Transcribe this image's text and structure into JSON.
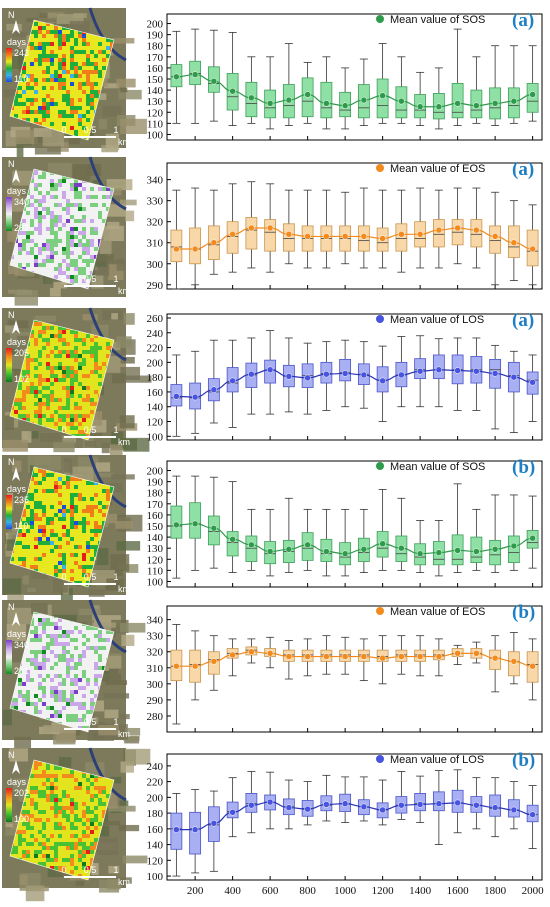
{
  "maps": [
    {
      "legend_title": "days",
      "legend_max": "243",
      "legend_min": "110",
      "scale_labels": [
        "0",
        "0.5",
        "1"
      ],
      "scale_unit": "km",
      "north": "N",
      "ramp": [
        "#1a4fd6",
        "#3bb0ea",
        "#1fae3c",
        "#e8e820",
        "#f07d1a",
        "#e51e1e"
      ]
    },
    {
      "legend_title": "days",
      "legend_max": "340",
      "legend_min": "282",
      "scale_labels": [
        "0",
        "0.5",
        "1"
      ],
      "scale_unit": "km",
      "north": "N",
      "ramp": [
        "#138a24",
        "#7bcf7e",
        "#f2f2f2",
        "#c9a7e8",
        "#7b3fc7"
      ]
    },
    {
      "legend_title": "days",
      "legend_max": "205",
      "legend_min": "102",
      "scale_labels": [
        "0",
        "0.5",
        "1"
      ],
      "scale_unit": "km",
      "north": "N",
      "ramp": [
        "#0f7a20",
        "#48c232",
        "#e2e41e",
        "#f38a1c",
        "#e31c1c"
      ]
    },
    {
      "legend_title": "days",
      "legend_max": "235",
      "legend_min": "110",
      "scale_labels": [
        "0",
        "0.5",
        "1"
      ],
      "scale_unit": "km",
      "north": "N",
      "ramp": [
        "#1a4fd6",
        "#3bb0ea",
        "#1fae3c",
        "#e8e820",
        "#f07d1a",
        "#e51e1e"
      ]
    },
    {
      "legend_title": "days",
      "legend_max": "340",
      "legend_min": "281",
      "scale_labels": [
        "0",
        "0.5",
        "1"
      ],
      "scale_unit": "km",
      "north": "N",
      "ramp": [
        "#138a24",
        "#7bcf7e",
        "#f2f2f2",
        "#c9a7e8",
        "#7b3fc7"
      ]
    },
    {
      "legend_title": "days",
      "legend_max": "202",
      "legend_min": "100",
      "scale_labels": [
        "0",
        "0.5",
        "1"
      ],
      "scale_unit": "km",
      "north": "N",
      "ramp": [
        "#0f7a20",
        "#48c232",
        "#e2e41e",
        "#f38a1c",
        "#e31c1c"
      ]
    }
  ],
  "chart_data": [
    {
      "type": "box",
      "panel_label": "(a)",
      "legend": "Mean value of SOS",
      "legend_position": "top-right",
      "colors": {
        "fill": "#8fe0a4",
        "stroke": "#3f9e5a",
        "mean": "#2f9a4c",
        "line": "#2f9a4c"
      },
      "x": [
        100,
        200,
        300,
        400,
        500,
        600,
        700,
        800,
        900,
        1000,
        1100,
        1200,
        1300,
        1400,
        1500,
        1600,
        1700,
        1800,
        1900,
        2000
      ],
      "x_ticks": [
        "200",
        "400",
        "600",
        "800",
        "1000",
        "1200",
        "1400",
        "1600",
        "1800",
        "2000"
      ],
      "ylim": [
        95,
        205
      ],
      "y_ticks": [
        "100",
        "110",
        "120",
        "130",
        "140",
        "150",
        "160",
        "170",
        "180",
        "190",
        "200"
      ],
      "whisker_low": [
        110,
        110,
        112,
        108,
        110,
        105,
        108,
        110,
        105,
        105,
        108,
        110,
        110,
        108,
        105,
        108,
        110,
        108,
        110,
        112
      ],
      "q1": [
        143,
        145,
        138,
        122,
        116,
        115,
        115,
        116,
        115,
        116,
        115,
        115,
        115,
        115,
        114,
        115,
        115,
        114,
        115,
        120
      ],
      "median": [
        152,
        155,
        146,
        134,
        128,
        124,
        126,
        130,
        124,
        122,
        124,
        126,
        122,
        122,
        120,
        120,
        122,
        124,
        126,
        130
      ],
      "q3": [
        163,
        166,
        161,
        155,
        147,
        140,
        145,
        151,
        147,
        138,
        145,
        150,
        143,
        136,
        137,
        146,
        140,
        142,
        142,
        146
      ],
      "whisker_high": [
        193,
        195,
        194,
        192,
        170,
        170,
        182,
        165,
        170,
        160,
        168,
        182,
        170,
        156,
        160,
        195,
        170,
        180,
        180,
        180
      ],
      "mean": [
        152,
        154,
        148,
        139,
        133,
        128,
        131,
        136,
        128,
        126,
        131,
        135,
        130,
        125,
        125,
        128,
        126,
        128,
        130,
        136
      ]
    },
    {
      "type": "box",
      "panel_label": "(a)",
      "legend": "Mean value of EOS",
      "legend_position": "top-right",
      "colors": {
        "fill": "#f8d7a9",
        "stroke": "#c9964f",
        "mean": "#f28a1e",
        "line": "#f28a1e"
      },
      "x": [
        100,
        200,
        300,
        400,
        500,
        600,
        700,
        800,
        900,
        1000,
        1100,
        1200,
        1300,
        1400,
        1500,
        1600,
        1700,
        1800,
        1900,
        2000
      ],
      "x_ticks": [
        "200",
        "400",
        "600",
        "800",
        "1000",
        "1200",
        "1400",
        "1600",
        "1800",
        "2000"
      ],
      "ylim": [
        288,
        346
      ],
      "y_ticks": [
        "290",
        "300",
        "310",
        "320",
        "330",
        "340"
      ],
      "whisker_low": [
        288,
        290,
        295,
        296,
        298,
        296,
        300,
        298,
        298,
        300,
        298,
        298,
        296,
        298,
        298,
        300,
        298,
        290,
        292,
        290
      ],
      "q1": [
        301,
        300,
        302,
        305,
        307,
        306,
        306,
        306,
        306,
        306,
        306,
        306,
        306,
        308,
        308,
        309,
        308,
        305,
        303,
        299
      ],
      "median": [
        308,
        307,
        309,
        313,
        316,
        315,
        312,
        312,
        312,
        312,
        311,
        310,
        312,
        312,
        314,
        315,
        314,
        311,
        308,
        306
      ],
      "q3": [
        316,
        317,
        318,
        320,
        322,
        321,
        319,
        318,
        318,
        318,
        318,
        317,
        319,
        320,
        321,
        321,
        321,
        318,
        318,
        316
      ],
      "whisker_high": [
        335,
        336,
        335,
        338,
        339,
        338,
        335,
        335,
        335,
        334,
        336,
        335,
        335,
        336,
        335,
        336,
        336,
        334,
        330,
        328
      ],
      "mean": [
        307,
        307,
        310,
        314,
        317,
        317,
        314,
        313,
        313,
        313,
        313,
        312,
        314,
        314,
        316,
        317,
        316,
        313,
        310,
        307
      ]
    },
    {
      "type": "box",
      "panel_label": "(a)",
      "legend": "Mean value of LOS",
      "legend_position": "top-right",
      "colors": {
        "fill": "#a8aff3",
        "stroke": "#4b55c8",
        "mean": "#4754e0",
        "line": "#2b34b8"
      },
      "x": [
        100,
        200,
        300,
        400,
        500,
        600,
        700,
        800,
        900,
        1000,
        1100,
        1200,
        1300,
        1400,
        1500,
        1600,
        1700,
        1800,
        1900,
        2000
      ],
      "x_ticks": [
        "200",
        "400",
        "600",
        "800",
        "1000",
        "1200",
        "1400",
        "1600",
        "1800",
        "2000"
      ],
      "ylim": [
        95,
        260
      ],
      "y_ticks": [
        "100",
        "120",
        "140",
        "160",
        "180",
        "200",
        "220",
        "240",
        "260"
      ],
      "whisker_low": [
        100,
        104,
        118,
        112,
        130,
        130,
        133,
        130,
        135,
        140,
        138,
        120,
        140,
        140,
        140,
        135,
        135,
        110,
        105,
        120
      ],
      "q1": [
        141,
        137,
        148,
        160,
        166,
        172,
        167,
        166,
        172,
        175,
        170,
        160,
        167,
        178,
        178,
        171,
        172,
        165,
        160,
        157
      ],
      "median": [
        152,
        152,
        160,
        172,
        183,
        190,
        181,
        182,
        185,
        186,
        184,
        176,
        183,
        190,
        190,
        190,
        190,
        190,
        182,
        176
      ],
      "q3": [
        170,
        172,
        178,
        193,
        199,
        203,
        196,
        198,
        200,
        204,
        198,
        194,
        200,
        205,
        210,
        210,
        208,
        204,
        200,
        187
      ],
      "whisker_high": [
        210,
        215,
        230,
        230,
        233,
        243,
        233,
        226,
        228,
        230,
        228,
        222,
        235,
        236,
        232,
        233,
        233,
        223,
        215,
        210
      ],
      "mean": [
        154,
        153,
        163,
        175,
        184,
        190,
        181,
        179,
        184,
        185,
        183,
        175,
        183,
        188,
        190,
        189,
        188,
        185,
        180,
        173
      ]
    },
    {
      "type": "box",
      "panel_label": "(b)",
      "legend": "Mean value of SOS",
      "legend_position": "top-right",
      "colors": {
        "fill": "#8fe0a4",
        "stroke": "#3f9e5a",
        "mean": "#2f9a4c",
        "line": "#2f9a4c"
      },
      "x": [
        100,
        200,
        300,
        400,
        500,
        600,
        700,
        800,
        900,
        1000,
        1100,
        1200,
        1300,
        1400,
        1500,
        1600,
        1700,
        1800,
        1900,
        2000
      ],
      "x_ticks": [
        "200",
        "400",
        "600",
        "800",
        "1000",
        "1200",
        "1400",
        "1600",
        "1800",
        "2000"
      ],
      "ylim": [
        95,
        205
      ],
      "y_ticks": [
        "100",
        "110",
        "120",
        "130",
        "140",
        "150",
        "160",
        "170",
        "180",
        "190",
        "200"
      ],
      "whisker_low": [
        103,
        110,
        112,
        108,
        110,
        105,
        108,
        110,
        105,
        105,
        108,
        110,
        110,
        108,
        105,
        108,
        110,
        108,
        110,
        112
      ],
      "q1": [
        139,
        139,
        133,
        123,
        118,
        116,
        117,
        119,
        118,
        115,
        118,
        122,
        118,
        115,
        115,
        115,
        117,
        115,
        117,
        130
      ],
      "median": [
        150,
        152,
        145,
        135,
        130,
        125,
        127,
        130,
        125,
        122,
        126,
        130,
        125,
        122,
        120,
        120,
        122,
        124,
        126,
        135
      ],
      "q3": [
        168,
        171,
        159,
        145,
        141,
        136,
        137,
        144,
        138,
        135,
        139,
        145,
        141,
        134,
        136,
        142,
        140,
        137,
        141,
        146
      ],
      "whisker_high": [
        195,
        195,
        194,
        190,
        165,
        165,
        175,
        165,
        165,
        165,
        165,
        183,
        175,
        155,
        155,
        188,
        165,
        178,
        178,
        177
      ],
      "mean": [
        151,
        152,
        148,
        138,
        133,
        127,
        129,
        133,
        127,
        125,
        129,
        134,
        130,
        125,
        126,
        128,
        127,
        129,
        132,
        139
      ]
    },
    {
      "type": "box",
      "panel_label": "(b)",
      "legend": "Mean value of EOS",
      "legend_position": "top-right",
      "colors": {
        "fill": "#f8d7a9",
        "stroke": "#c9964f",
        "mean": "#f28a1e",
        "line": "#f28a1e"
      },
      "x": [
        100,
        200,
        300,
        400,
        500,
        600,
        700,
        800,
        900,
        1000,
        1100,
        1200,
        1300,
        1400,
        1500,
        1600,
        1700,
        1800,
        1900,
        2000
      ],
      "x_ticks": [
        "200",
        "400",
        "600",
        "800",
        "1000",
        "1200",
        "1400",
        "1600",
        "1800",
        "2000"
      ],
      "ylim": [
        270,
        346
      ],
      "y_ticks": [
        "280",
        "290",
        "300",
        "310",
        "320",
        "330",
        "340"
      ],
      "whisker_low": [
        275,
        290,
        296,
        305,
        313,
        310,
        303,
        305,
        306,
        306,
        302,
        300,
        306,
        305,
        305,
        312,
        313,
        295,
        300,
        290
      ],
      "q1": [
        302,
        301,
        306,
        316,
        318,
        317,
        314,
        314,
        314,
        314,
        314,
        314,
        314,
        314,
        315,
        317,
        316,
        309,
        305,
        301
      ],
      "median": [
        311,
        312,
        315,
        319,
        321,
        319,
        318,
        318,
        318,
        318,
        318,
        317,
        318,
        318,
        318,
        319,
        319,
        316,
        314,
        312
      ],
      "q3": [
        321,
        321,
        320,
        322,
        323,
        322,
        321,
        321,
        321,
        321,
        321,
        321,
        321,
        321,
        321,
        322,
        322,
        321,
        320,
        320
      ],
      "whisker_high": [
        337,
        333,
        330,
        328,
        328,
        329,
        327,
        328,
        330,
        329,
        328,
        330,
        330,
        330,
        328,
        324,
        326,
        330,
        332,
        328
      ],
      "mean": [
        311,
        311,
        314,
        318,
        320,
        319,
        317,
        317,
        317,
        317,
        317,
        316,
        317,
        317,
        317,
        319,
        319,
        316,
        314,
        311
      ]
    },
    {
      "type": "box",
      "panel_label": "(b)",
      "legend": "Mean value of LOS",
      "legend_position": "top-right",
      "colors": {
        "fill": "#a8aff3",
        "stroke": "#4b55c8",
        "mean": "#4754e0",
        "line": "#2b34b8"
      },
      "x": [
        100,
        200,
        300,
        400,
        500,
        600,
        700,
        800,
        900,
        1000,
        1100,
        1200,
        1300,
        1400,
        1500,
        1600,
        1700,
        1800,
        1900,
        2000
      ],
      "x_ticks": [
        "200",
        "400",
        "600",
        "800",
        "1000",
        "1200",
        "1400",
        "1600",
        "1800",
        "2000"
      ],
      "ylim": [
        95,
        250
      ],
      "y_ticks": [
        "100",
        "120",
        "140",
        "160",
        "180",
        "200",
        "220",
        "240"
      ],
      "whisker_low": [
        100,
        104,
        106,
        150,
        155,
        160,
        160,
        165,
        170,
        168,
        170,
        165,
        172,
        168,
        140,
        155,
        160,
        150,
        160,
        135
      ],
      "q1": [
        134,
        128,
        144,
        174,
        181,
        184,
        178,
        176,
        183,
        182,
        178,
        174,
        180,
        183,
        183,
        181,
        181,
        176,
        175,
        169
      ],
      "median": [
        160,
        160,
        165,
        182,
        192,
        194,
        188,
        186,
        190,
        192,
        188,
        184,
        190,
        192,
        192,
        193,
        190,
        186,
        184,
        178
      ],
      "q3": [
        180,
        181,
        188,
        194,
        205,
        203,
        198,
        196,
        202,
        204,
        197,
        193,
        201,
        205,
        207,
        209,
        201,
        203,
        197,
        190
      ],
      "whisker_high": [
        205,
        210,
        208,
        225,
        233,
        232,
        222,
        220,
        228,
        226,
        226,
        222,
        233,
        227,
        234,
        235,
        225,
        225,
        220,
        215
      ],
      "mean": [
        159,
        159,
        167,
        181,
        190,
        194,
        187,
        185,
        191,
        192,
        188,
        184,
        190,
        191,
        192,
        193,
        190,
        187,
        184,
        178
      ]
    }
  ]
}
